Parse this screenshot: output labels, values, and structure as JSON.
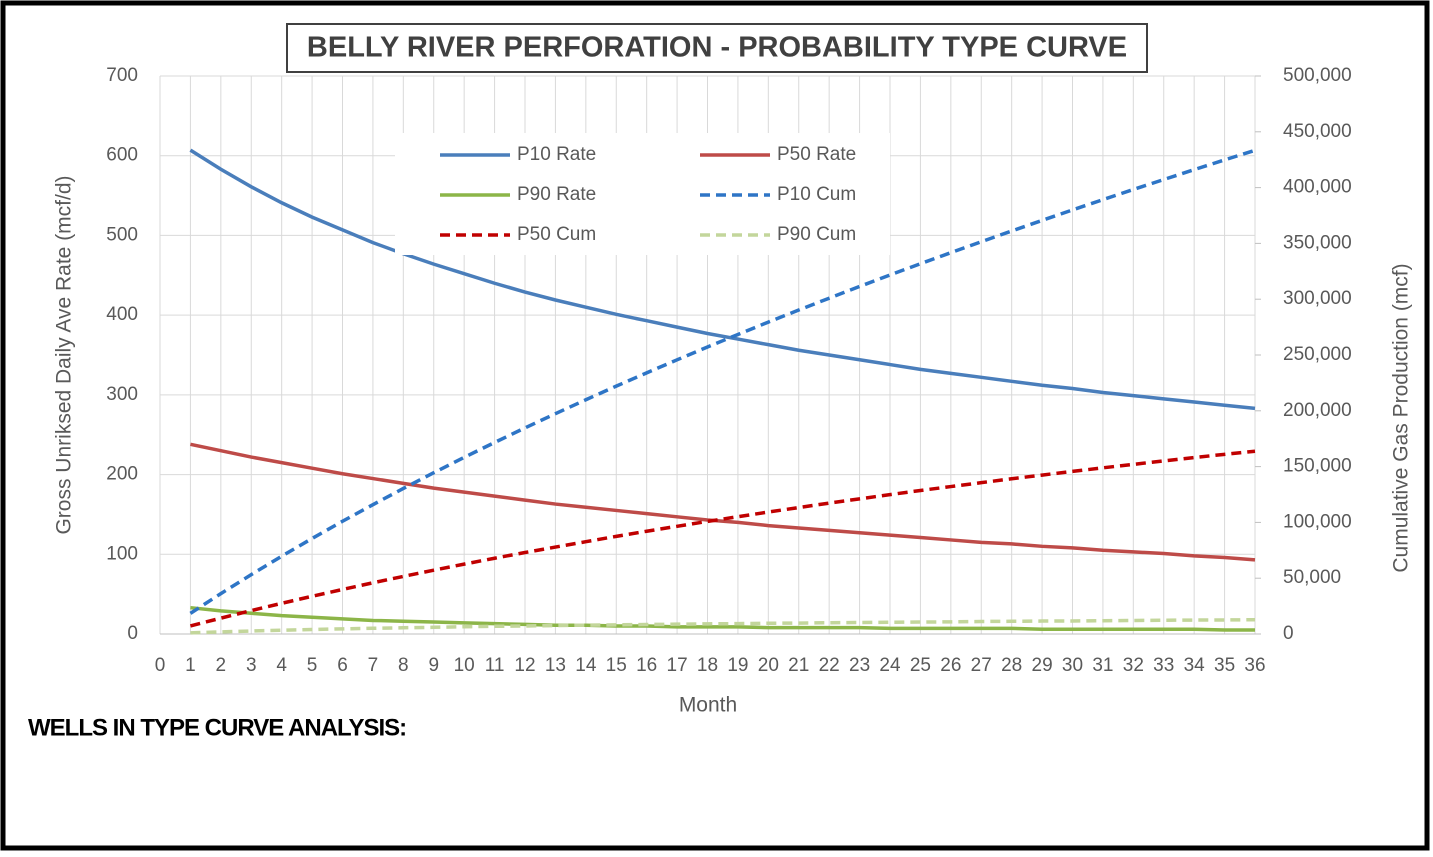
{
  "chart_data": {
    "type": "line",
    "title": "BELLY RIVER PERFORATION - PROBABILITY TYPE CURVE",
    "x_label": "Month",
    "y_label": "Gross Unriksed Daily Ave Rate (mcf/d)",
    "y2_label": "Cumulative Gas Production (mcf)",
    "note": "WELLS IN TYPE CURVE ANALYSIS:",
    "x": [
      1,
      2,
      3,
      4,
      5,
      6,
      7,
      8,
      9,
      10,
      11,
      12,
      13,
      14,
      15,
      16,
      17,
      18,
      19,
      20,
      21,
      22,
      23,
      24,
      25,
      26,
      27,
      28,
      29,
      30,
      31,
      32,
      33,
      34,
      35,
      36
    ],
    "xlim": [
      0,
      36
    ],
    "xticks": [
      0,
      1,
      2,
      3,
      4,
      5,
      6,
      7,
      8,
      9,
      10,
      11,
      12,
      13,
      14,
      15,
      16,
      17,
      18,
      19,
      20,
      21,
      22,
      23,
      24,
      25,
      26,
      27,
      28,
      29,
      30,
      31,
      32,
      33,
      34,
      35,
      36
    ],
    "ylim": [
      0,
      700
    ],
    "yticks": [
      0,
      100,
      200,
      300,
      400,
      500,
      600,
      700
    ],
    "y2lim": [
      0,
      500000
    ],
    "y2ticks": [
      0,
      {
        "value": 50000,
        "label": "50,000"
      },
      {
        "value": 100000,
        "label": "100,000"
      },
      {
        "value": 150000,
        "label": "150,000"
      },
      {
        "value": 200000,
        "label": "200,000"
      },
      {
        "value": 250000,
        "label": "250,000"
      },
      {
        "value": 300000,
        "label": "300,000"
      },
      {
        "value": 350000,
        "label": "350,000"
      },
      {
        "value": 400000,
        "label": "400,000"
      },
      {
        "value": 450000,
        "label": "450,000"
      },
      {
        "value": 500000,
        "label": "500,000"
      }
    ],
    "grid": true,
    "series": [
      {
        "name": "P10 Rate",
        "color": "#4a7ebb",
        "dashed": false,
        "values": [
          607,
          583,
          561,
          541,
          523,
          507,
          491,
          477,
          464,
          452,
          440,
          429,
          419,
          410,
          401,
          393,
          385,
          377,
          370,
          363,
          356,
          350,
          344,
          338,
          332,
          327,
          322,
          317,
          312,
          308,
          303,
          299,
          295,
          291,
          287,
          283
        ]
      },
      {
        "name": "P50 Rate",
        "color": "#be4b48",
        "dashed": false,
        "values": [
          238,
          230,
          222,
          215,
          208,
          201,
          195,
          189,
          183,
          178,
          173,
          168,
          163,
          159,
          155,
          151,
          147,
          143,
          140,
          136,
          133,
          130,
          127,
          124,
          121,
          118,
          115,
          113,
          110,
          108,
          105,
          103,
          101,
          98,
          96,
          93
        ]
      },
      {
        "name": "P90 Rate",
        "color": "#8cb548",
        "dashed": false,
        "values": [
          33,
          29,
          26,
          23,
          21,
          19,
          17,
          16,
          15,
          14,
          13,
          12,
          11,
          11,
          10,
          10,
          9,
          9,
          9,
          8,
          8,
          8,
          8,
          7,
          7,
          7,
          7,
          7,
          6,
          6,
          6,
          6,
          6,
          6,
          5,
          5
        ]
      },
      {
        "name": "P10 Cum",
        "color": "#2e75c6",
        "dashed": true,
        "axis": "y2",
        "values": [
          18500,
          36200,
          53200,
          69700,
          85600,
          101000,
          115900,
          130400,
          144500,
          158300,
          171600,
          184700,
          197400,
          209900,
          222100,
          234000,
          245700,
          257200,
          268400,
          279500,
          290300,
          300900,
          311400,
          321700,
          331800,
          341700,
          351500,
          361100,
          370600,
          380000,
          389200,
          398300,
          407200,
          416100,
          424800,
          433400
        ]
      },
      {
        "name": "P50 Cum",
        "color": "#c00000",
        "dashed": true,
        "axis": "y2",
        "values": [
          7200,
          14200,
          21000,
          27500,
          33800,
          39900,
          45900,
          51600,
          57200,
          62600,
          67900,
          73000,
          77900,
          82700,
          87500,
          92100,
          96500,
          100900,
          105100,
          109300,
          113300,
          117300,
          121100,
          124900,
          128600,
          132100,
          135600,
          139100,
          142400,
          145700,
          148900,
          152000,
          155100,
          158100,
          161000,
          163800
        ]
      },
      {
        "name": "P90 Cum",
        "color": "#c3d69b",
        "dashed": true,
        "axis": "y2",
        "values": [
          1000,
          1900,
          2700,
          3400,
          4000,
          4600,
          5100,
          5600,
          6000,
          6500,
          6900,
          7200,
          7600,
          7900,
          8200,
          8500,
          8800,
          9100,
          9300,
          9600,
          9800,
          10100,
          10300,
          10500,
          10700,
          10900,
          11200,
          11400,
          11600,
          11700,
          11900,
          12100,
          12300,
          12500,
          12600,
          12800
        ]
      }
    ]
  }
}
